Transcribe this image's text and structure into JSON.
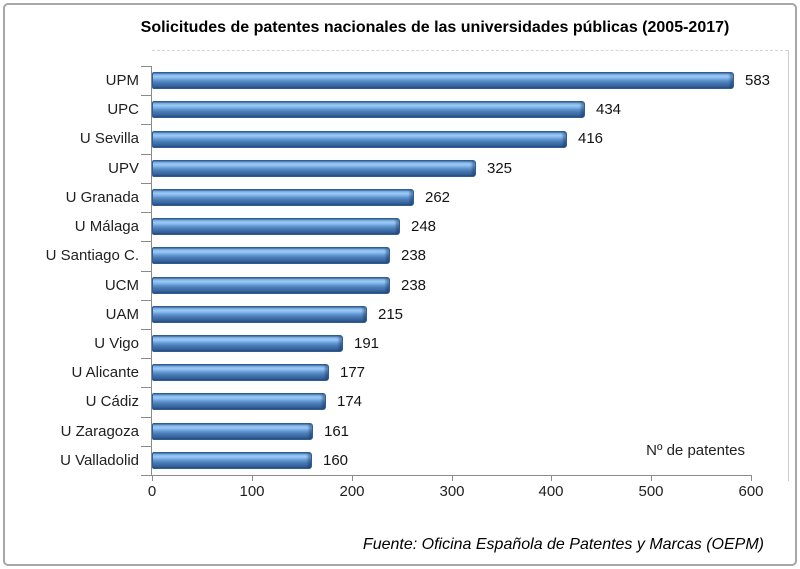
{
  "chart_data": {
    "type": "bar",
    "orientation": "horizontal",
    "title": "Solicitudes de patentes nacionales de las universidades públicas (2005-2017)",
    "categories": [
      "UPM",
      "UPC",
      "U Sevilla",
      "UPV",
      "U Granada",
      "U Málaga",
      "U Santiago C.",
      "UCM",
      "UAM",
      "U Vigo",
      "U Alicante",
      "U Cádiz",
      "U Zaragoza",
      "U Valladolid"
    ],
    "values": [
      583,
      434,
      416,
      325,
      262,
      248,
      238,
      238,
      215,
      191,
      177,
      174,
      161,
      160
    ],
    "value_labels_shown": true,
    "xlabel": "Nº de patentes",
    "ylabel": "",
    "x_ticks": [
      0,
      100,
      200,
      300,
      400,
      500,
      600
    ],
    "xlim": [
      0,
      600
    ],
    "grid": false,
    "legend": false,
    "source_note": "Fuente: Oficina Española de Patentes y Marcas (OEPM)",
    "colors": {
      "bar_fill": "#4F81BD",
      "bar_highlight": "#9BCAF6",
      "bar_shadow": "#2B5181",
      "axis_line": "#8A8A8A",
      "text": "#1F1F1F",
      "frame_border": "#A6A6A6"
    }
  }
}
